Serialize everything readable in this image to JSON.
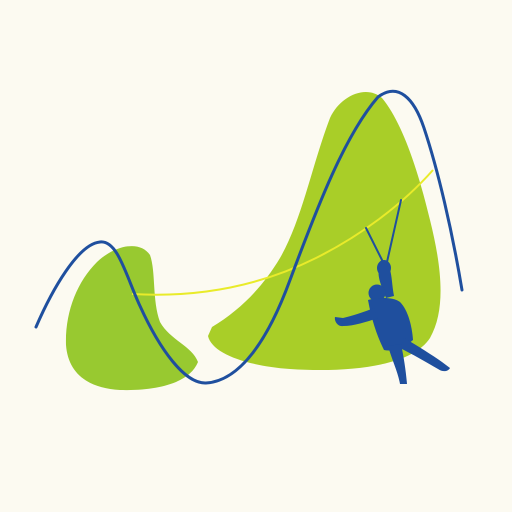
{
  "scene": {
    "subject": "zipline-rider-illustration",
    "icons": [
      "left-hill-shape",
      "right-hill-shape",
      "zipline-cable",
      "mountain-outline-line",
      "zipline-rider-silhouette"
    ],
    "colors": {
      "background": "#FCFAF1",
      "hill_left": "#98C930",
      "hill_right": "#A9CE28",
      "zipline": "#E9EB2A",
      "outline": "#1F4F9E",
      "rider": "#1F4F9E"
    }
  }
}
